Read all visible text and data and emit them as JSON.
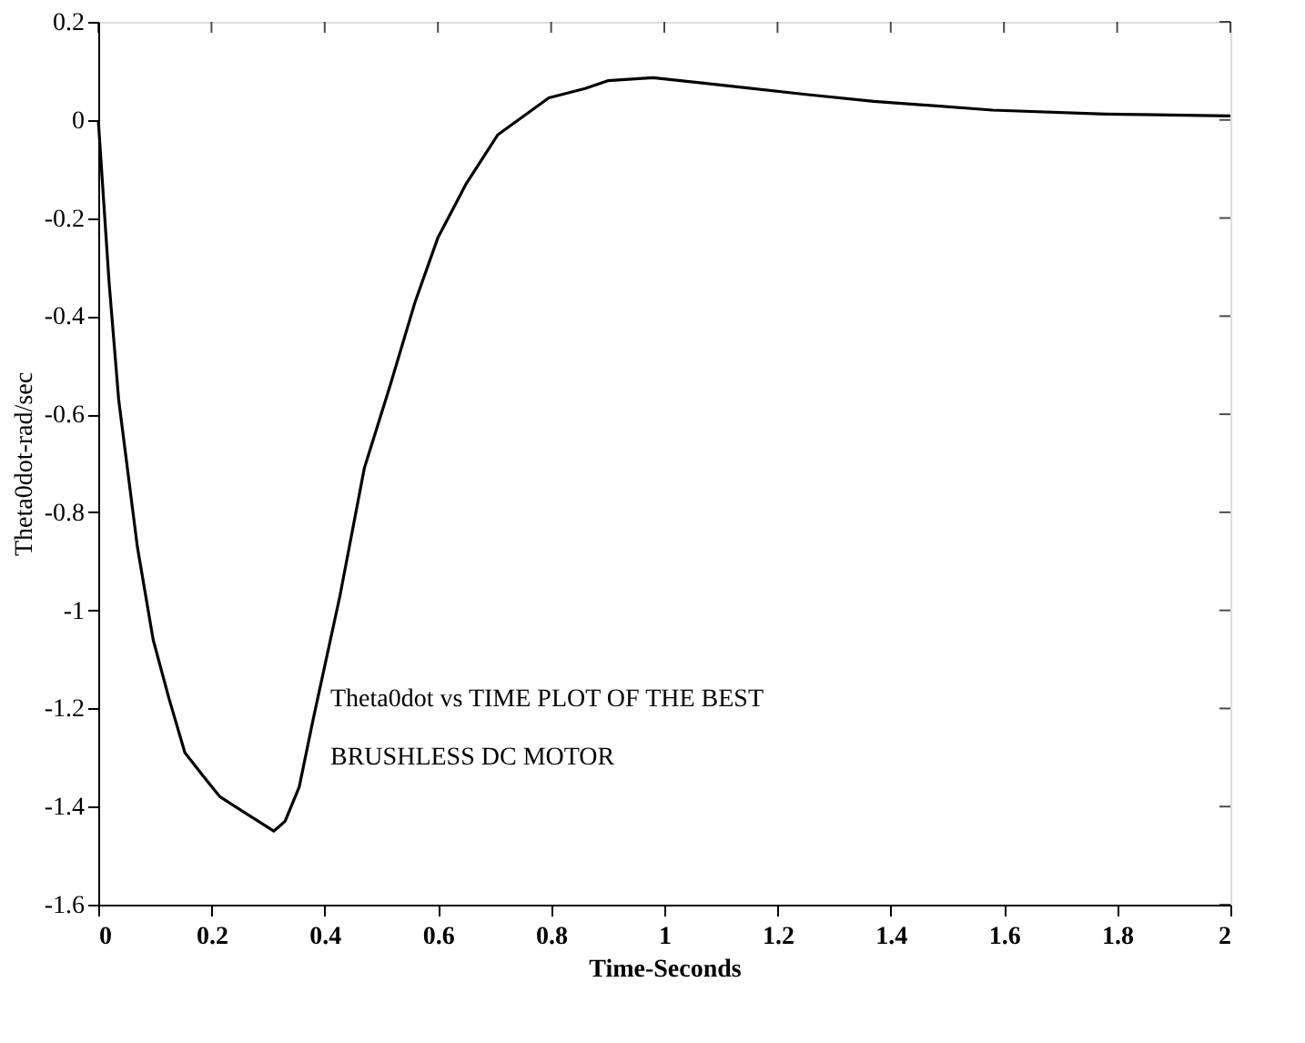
{
  "chart_data": {
    "type": "line",
    "xlabel": "Time-Seconds",
    "ylabel": "Theta0dot-rad/sec",
    "annotations": [
      {
        "text": "Theta0dot vs TIME PLOT OF THE BEST"
      },
      {
        "text": "BRUSHLESS DC MOTOR"
      }
    ],
    "x": [
      0,
      0.019,
      0.036,
      0.069,
      0.097,
      0.125,
      0.153,
      0.187,
      0.215,
      0.31,
      0.33,
      0.355,
      0.38,
      0.427,
      0.47,
      0.516,
      0.56,
      0.6,
      0.65,
      0.706,
      0.796,
      0.86,
      0.9,
      0.98,
      1.11,
      1.25,
      1.37,
      1.58,
      1.78,
      2.0
    ],
    "series": [
      {
        "color": "#000000",
        "values": [
          0,
          -0.33,
          -0.57,
          -0.87,
          -1.06,
          -1.18,
          -1.29,
          -1.34,
          -1.38,
          -1.45,
          -1.43,
          -1.36,
          -1.22,
          -0.97,
          -0.71,
          -0.54,
          -0.37,
          -0.24,
          -0.13,
          -0.03,
          0.045,
          0.064,
          0.08,
          0.086,
          0.07,
          0.052,
          0.038,
          0.02,
          0.012,
          0.008
        ]
      }
    ],
    "xlim": [
      0,
      2
    ],
    "xticks": [
      0,
      0.2,
      0.4,
      0.6,
      0.8,
      1,
      1.2,
      1.4,
      1.6,
      1.8,
      2
    ],
    "ylim": [
      -1.6,
      0.2
    ],
    "yticks": [
      -1.6,
      -1.4,
      -1.2,
      -1,
      -0.8,
      -0.6,
      -0.4,
      -0.2,
      0,
      0.2
    ],
    "grid": false,
    "marker": "none",
    "line_style": "solid"
  }
}
